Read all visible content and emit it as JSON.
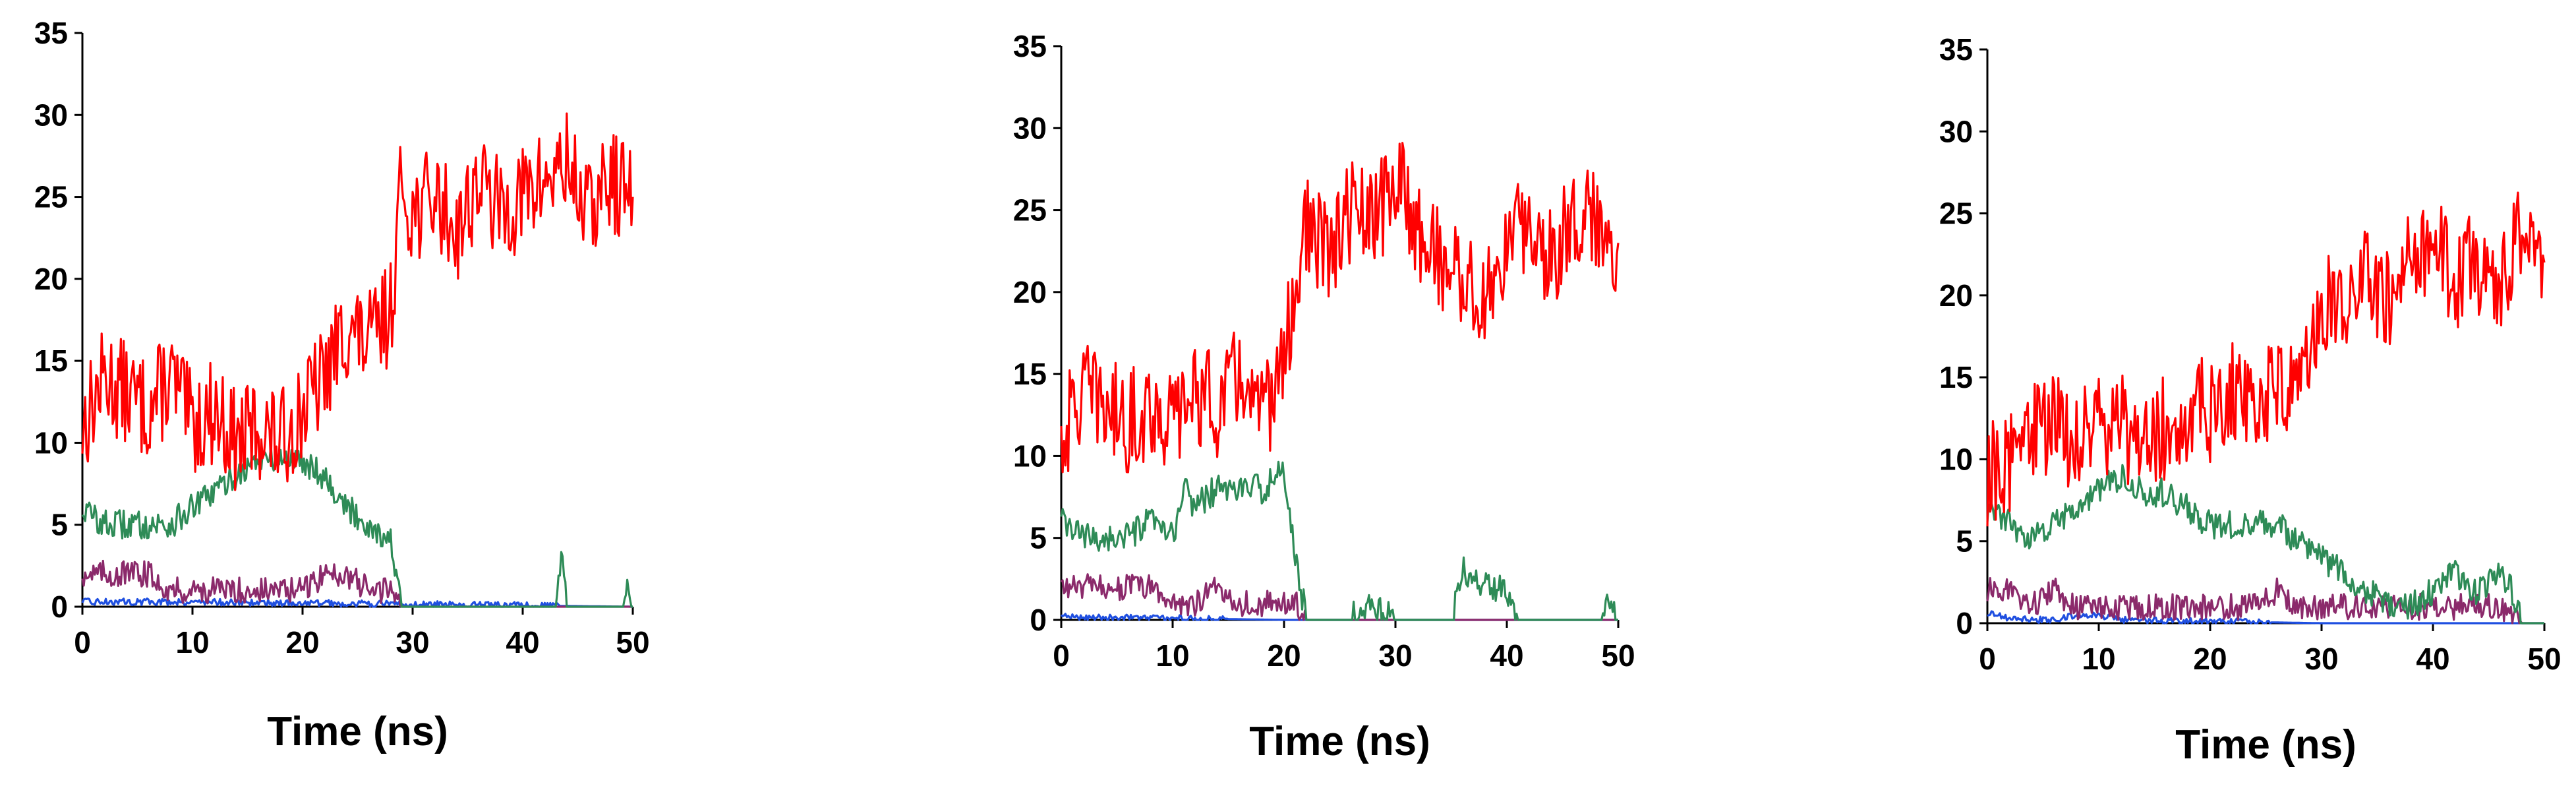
{
  "chart_data": [
    {
      "type": "line",
      "xlabel": "Time (ns)",
      "ylabel": "",
      "xlim": [
        0,
        50
      ],
      "ylim": [
        0,
        35
      ],
      "xticks": [
        0,
        10,
        20,
        30,
        40,
        50
      ],
      "yticks": [
        0,
        5,
        10,
        15,
        20,
        25,
        30,
        35
      ],
      "grid": false,
      "legend": "none",
      "series": [
        {
          "color": "#ff0000",
          "x": [
            0,
            2,
            4,
            6,
            8,
            10,
            12,
            14,
            16,
            18,
            20,
            22,
            24,
            26,
            28,
            29,
            30,
            32,
            34,
            36,
            38,
            40,
            42,
            44,
            46,
            48,
            50
          ],
          "y": [
            11,
            14,
            13,
            12,
            14,
            11,
            12,
            10,
            11,
            10,
            12,
            14,
            17,
            16,
            18,
            26,
            24,
            25,
            23,
            26,
            24,
            25,
            26,
            27,
            24,
            26,
            25
          ]
        },
        {
          "color": "#2e8b57",
          "x": [
            0,
            2,
            4,
            6,
            8,
            10,
            12,
            14,
            16,
            18,
            20,
            22,
            24,
            26,
            28,
            29,
            30,
            35,
            40,
            43,
            43.5,
            44,
            45,
            49,
            49.5,
            50
          ],
          "y": [
            6,
            5,
            5,
            5,
            5,
            6,
            7,
            8,
            9,
            9,
            9,
            8,
            6,
            5,
            4,
            0,
            0,
            0,
            0,
            0,
            3,
            0,
            0,
            0,
            1,
            0
          ]
        },
        {
          "color": "#8b2a6b",
          "x": [
            0,
            2,
            4,
            6,
            8,
            10,
            12,
            14,
            16,
            18,
            20,
            22,
            24,
            26,
            28,
            29,
            30,
            50
          ],
          "y": [
            2,
            2,
            2,
            2,
            1,
            1,
            1,
            1,
            1,
            1,
            1,
            2,
            2,
            1,
            1,
            0,
            0,
            0
          ]
        },
        {
          "color": "#1f4fe0",
          "x": [
            0,
            10,
            50
          ],
          "y": [
            0.3,
            0.3,
            0
          ]
        }
      ]
    },
    {
      "type": "line",
      "xlabel": "Time (ns)",
      "ylabel": "",
      "xlim": [
        0,
        50
      ],
      "ylim": [
        0,
        35
      ],
      "xticks": [
        0,
        10,
        20,
        30,
        40,
        50
      ],
      "yticks": [
        0,
        5,
        10,
        15,
        20,
        25,
        30,
        35
      ],
      "grid": false,
      "legend": "none",
      "series": [
        {
          "color": "#ff0000",
          "x": [
            0,
            2,
            4,
            6,
            8,
            10,
            12,
            14,
            16,
            18,
            20,
            21,
            22,
            24,
            26,
            28,
            30,
            32,
            34,
            36,
            38,
            40,
            42,
            44,
            46,
            48,
            50
          ],
          "y": [
            11,
            14,
            13,
            12,
            13,
            12,
            14,
            13,
            15,
            12,
            16,
            20,
            24,
            22,
            25,
            24,
            27,
            24,
            22,
            21,
            19,
            23,
            24,
            22,
            25,
            24,
            23
          ]
        },
        {
          "color": "#2e8b57",
          "x": [
            0,
            2,
            4,
            6,
            8,
            10,
            11,
            12,
            14,
            16,
            18,
            20,
            21,
            22,
            26,
            27,
            30,
            35,
            36,
            38,
            40,
            41,
            45,
            48.5,
            49,
            50
          ],
          "y": [
            6,
            5,
            5,
            5,
            6,
            5,
            8,
            7,
            8,
            8,
            8,
            9,
            4,
            0,
            0,
            1,
            0,
            0,
            3,
            2,
            2,
            0,
            0,
            0,
            2,
            0
          ]
        },
        {
          "color": "#8b2a6b",
          "x": [
            0,
            2,
            4,
            6,
            8,
            10,
            12,
            14,
            16,
            18,
            20,
            21,
            22,
            50
          ],
          "y": [
            2,
            2,
            2,
            2,
            2,
            1,
            1,
            2,
            1,
            1,
            1,
            1,
            0,
            0
          ]
        },
        {
          "color": "#1f4fe0",
          "x": [
            0,
            20,
            50
          ],
          "y": [
            0.2,
            0,
            0
          ]
        }
      ]
    },
    {
      "type": "line",
      "xlabel": "Time (ns)",
      "ylabel": "",
      "xlim": [
        0,
        50
      ],
      "ylim": [
        0,
        35
      ],
      "xticks": [
        0,
        10,
        20,
        30,
        40,
        50
      ],
      "yticks": [
        0,
        5,
        10,
        15,
        20,
        25,
        30,
        35
      ],
      "grid": false,
      "legend": "none",
      "series": [
        {
          "color": "#ff0000",
          "x": [
            0,
            2,
            4,
            6,
            8,
            10,
            12,
            14,
            16,
            18,
            20,
            22,
            24,
            26,
            28,
            30,
            32,
            34,
            36,
            38,
            40,
            42,
            44,
            46,
            48,
            50
          ],
          "y": [
            9,
            10,
            12,
            12,
            11,
            12,
            12,
            11,
            12,
            13,
            13,
            14,
            14,
            14,
            15,
            20,
            19,
            21,
            20,
            22,
            23,
            21,
            22,
            20,
            24,
            22
          ]
        },
        {
          "color": "#2e8b57",
          "x": [
            0,
            2,
            4,
            6,
            8,
            10,
            12,
            14,
            16,
            18,
            20,
            22,
            24,
            26,
            28,
            30,
            32,
            34,
            36,
            38,
            40,
            42,
            44,
            46,
            47,
            48,
            50
          ],
          "y": [
            7,
            6,
            5,
            6,
            7,
            8,
            9,
            8,
            8,
            7,
            6,
            6,
            6,
            6,
            5,
            4,
            3,
            2,
            1,
            1,
            2,
            3,
            2,
            3,
            2,
            0,
            0
          ]
        },
        {
          "color": "#8b2a6b",
          "x": [
            0,
            2,
            4,
            6,
            8,
            10,
            12,
            14,
            16,
            18,
            20,
            22,
            24,
            26,
            28,
            30,
            32,
            34,
            36,
            38,
            40,
            42,
            44,
            46,
            48,
            50
          ],
          "y": [
            2,
            2,
            1,
            2,
            1,
            1,
            1,
            1,
            1,
            1,
            1,
            1,
            1,
            2,
            1,
            1,
            1,
            1,
            1,
            1,
            1,
            1,
            1,
            1,
            0,
            0
          ]
        },
        {
          "color": "#1f4fe0",
          "x": [
            0,
            2,
            4,
            6,
            8,
            10,
            12,
            30,
            50
          ],
          "y": [
            0.6,
            0.3,
            0.2,
            0.2,
            0.5,
            0.5,
            0.2,
            0,
            0
          ]
        }
      ]
    }
  ]
}
